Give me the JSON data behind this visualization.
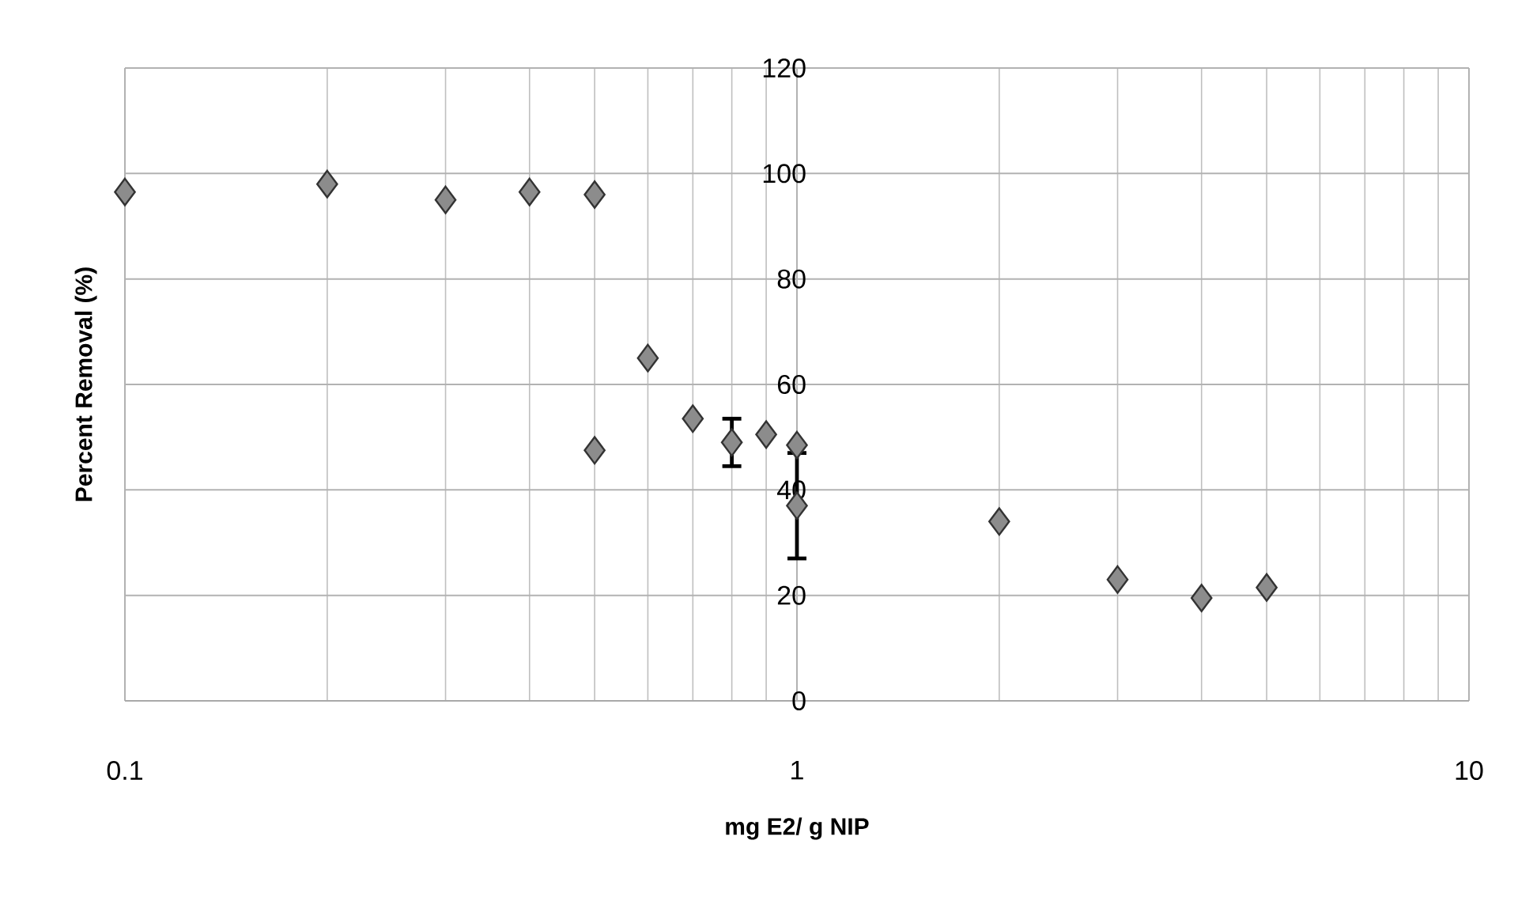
{
  "chart_data": {
    "type": "scatter",
    "xlabel": "mg E2/ g NIP",
    "ylabel": "Percent Removal (%)",
    "log": "x",
    "x": [
      0.1,
      0.2,
      0.3,
      0.4,
      0.5,
      0.5,
      0.6,
      0.7,
      0.8,
      0.9,
      1,
      1,
      2,
      3,
      4,
      5
    ],
    "values": [
      96.5,
      98,
      95,
      96.5,
      96,
      47.5,
      65,
      53.5,
      49,
      50.5,
      48.5,
      37,
      34,
      23,
      19.5,
      21.5
    ],
    "errors": [
      null,
      null,
      null,
      null,
      null,
      null,
      null,
      null,
      4.5,
      null,
      null,
      10,
      null,
      null,
      null,
      null
    ],
    "color": "#8c8c8c",
    "marker": "diamond",
    "grid": true,
    "xlim": [
      0.1,
      10
    ],
    "xticks": [
      0.1,
      1,
      10
    ],
    "ylim": [
      0,
      120
    ],
    "yticks": [
      0,
      20,
      40,
      60,
      80,
      100,
      120
    ]
  }
}
